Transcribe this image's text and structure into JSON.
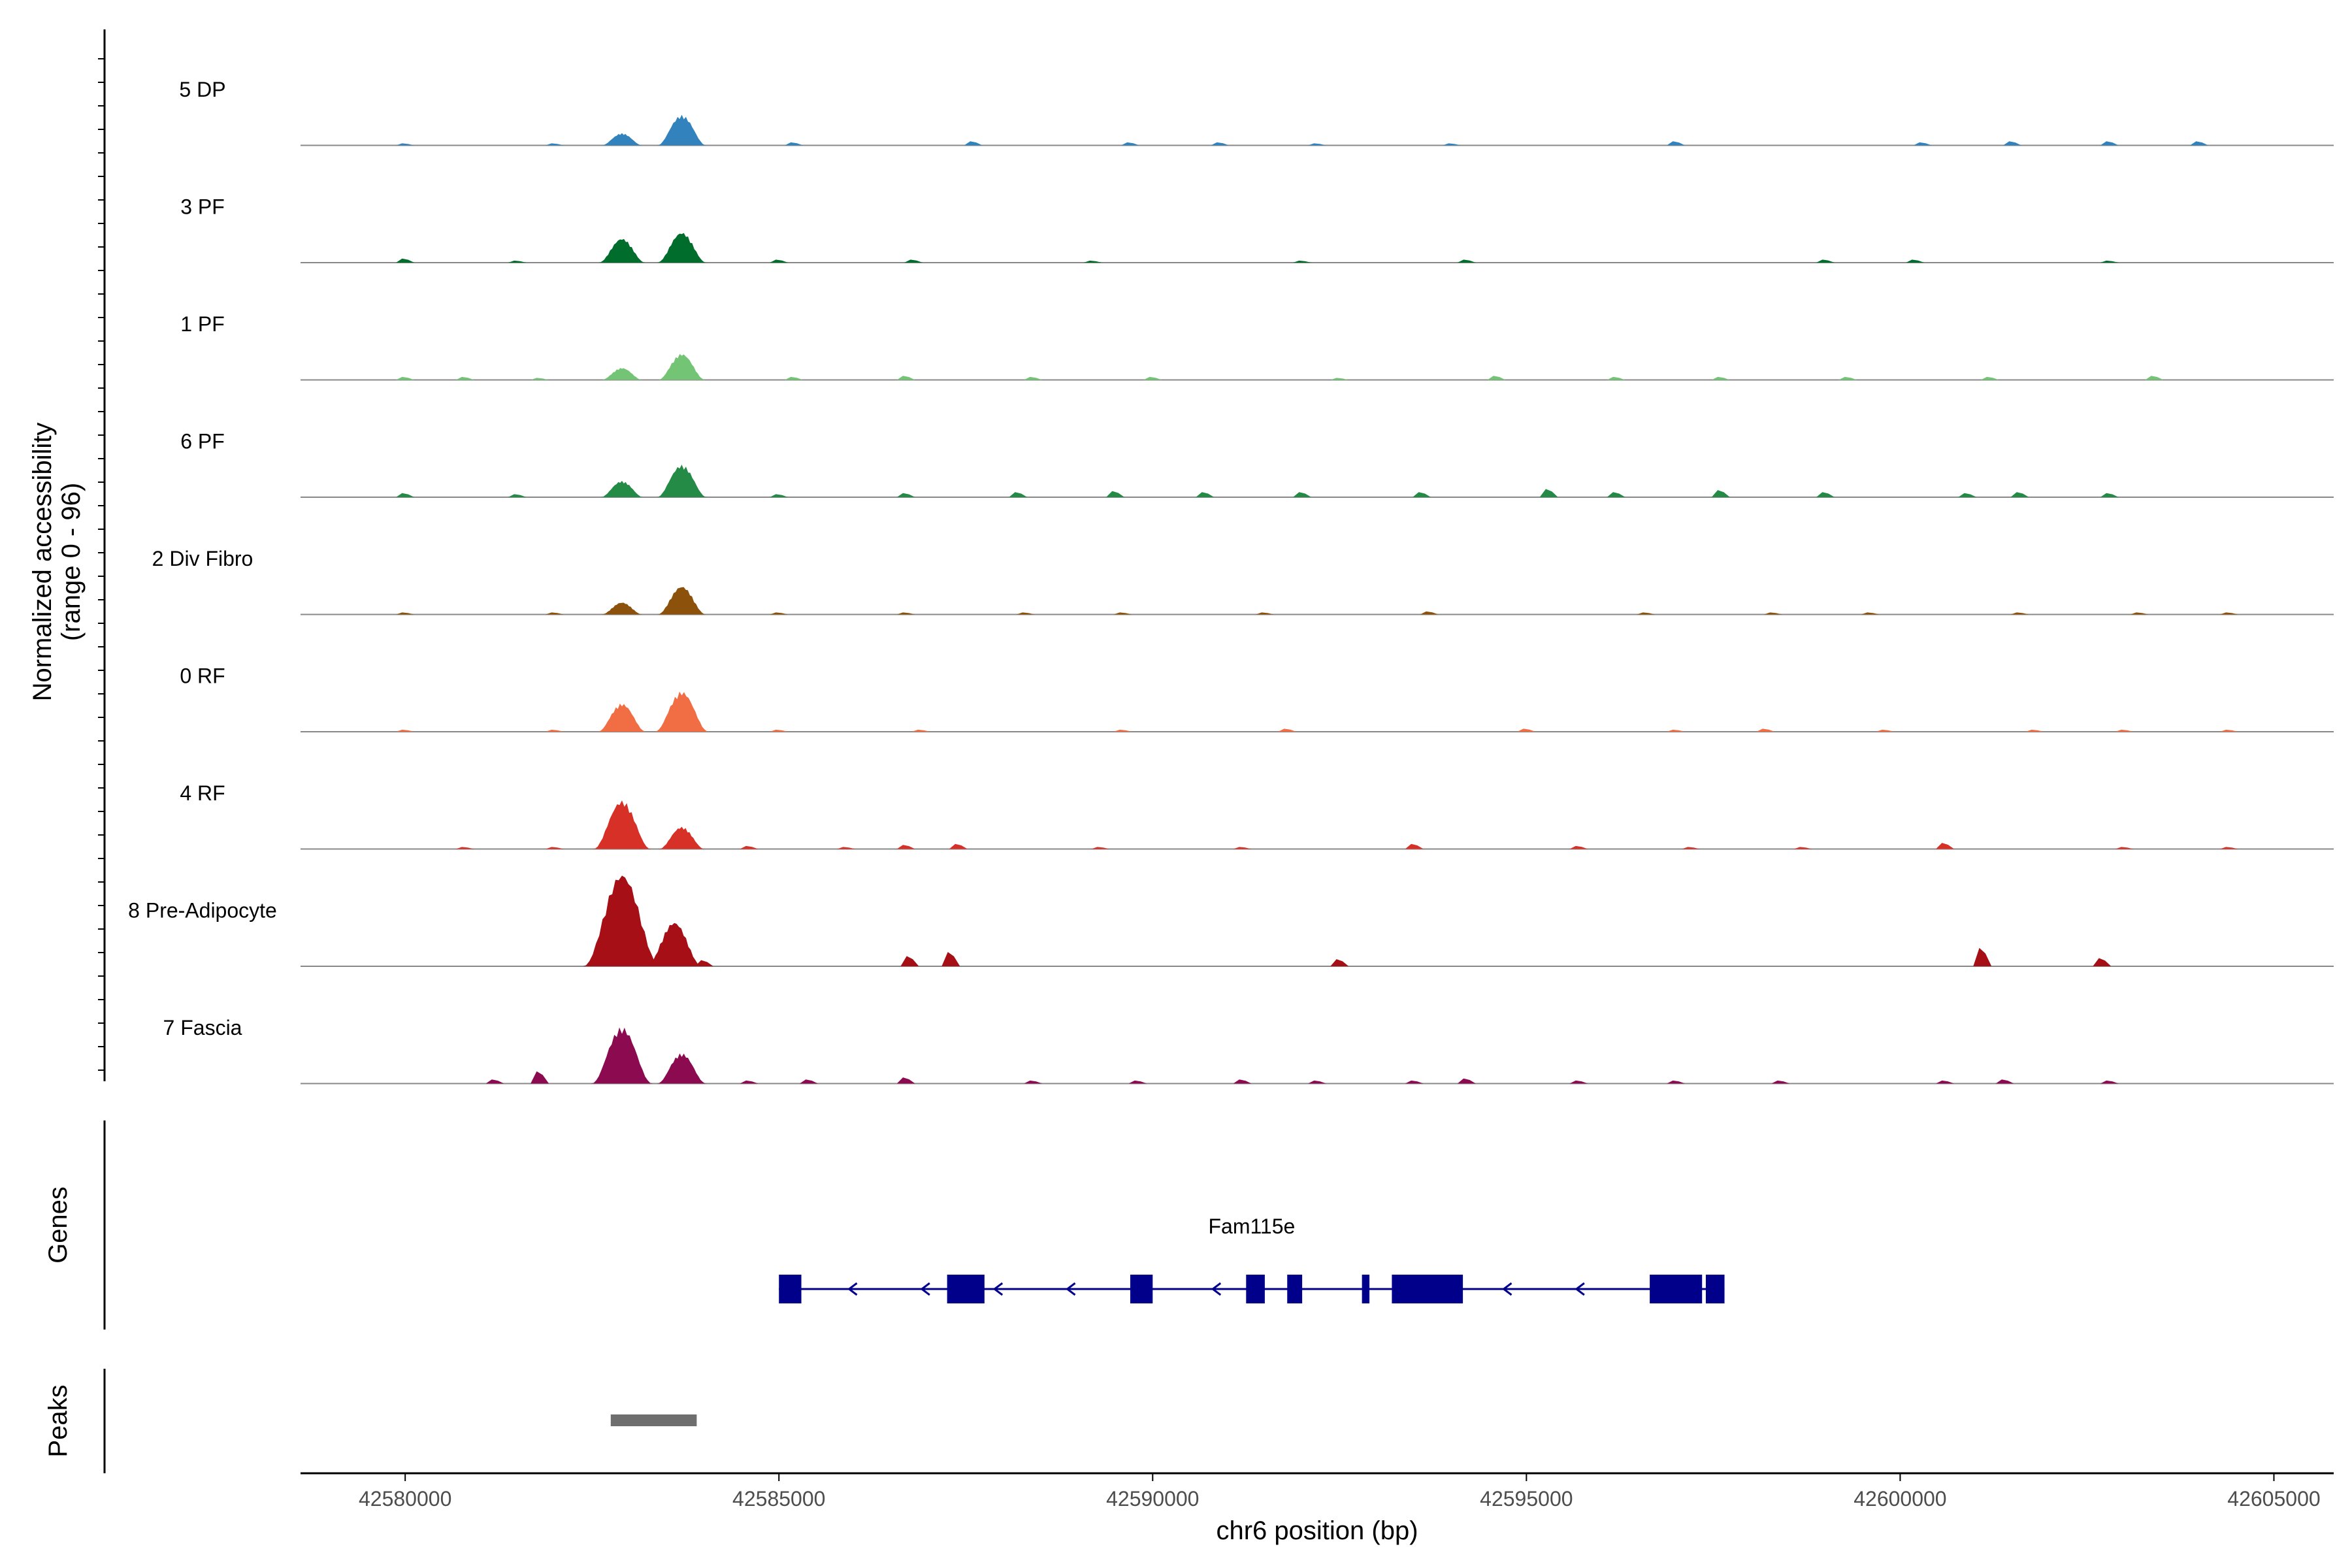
{
  "chart_data": {
    "type": "area",
    "title": "",
    "region": {
      "chromosome": "chr6",
      "start": 42578600,
      "end": 42605800
    },
    "xlabel": "chr6 position (bp)",
    "ylabel": [
      "Normalized accessibility",
      "(range 0 - 96)"
    ],
    "ylim": [
      0,
      96
    ],
    "x_ticks": [
      42580000,
      42585000,
      42590000,
      42595000,
      42600000,
      42605000
    ],
    "x_tick_labels": [
      "42580000",
      "42585000",
      "42590000",
      "42595000",
      "42600000",
      "42605000"
    ],
    "peak_centers_bp": [
      42582900,
      42583700
    ],
    "tracks": [
      {
        "name": "5 DP",
        "color": "#3182bd",
        "peaks": [
          [
            42582900,
            12
          ],
          [
            42583700,
            30
          ]
        ],
        "background": [
          [
            42580000,
            2
          ],
          [
            42582000,
            2
          ],
          [
            42585200,
            3
          ],
          [
            42587600,
            4
          ],
          [
            42589700,
            3
          ],
          [
            42590900,
            3
          ],
          [
            42592200,
            2
          ],
          [
            42594000,
            2
          ],
          [
            42597000,
            4
          ],
          [
            42600300,
            3
          ],
          [
            42601500,
            4
          ],
          [
            42602800,
            4
          ],
          [
            42604000,
            4
          ]
        ]
      },
      {
        "name": "3 PF",
        "color": "#006d2c",
        "peaks": [
          [
            42582900,
            24
          ],
          [
            42583700,
            30
          ]
        ],
        "background": [
          [
            42580000,
            4
          ],
          [
            42581500,
            2
          ],
          [
            42585000,
            3
          ],
          [
            42586800,
            3
          ],
          [
            42589200,
            2
          ],
          [
            42592000,
            2
          ],
          [
            42594200,
            3
          ],
          [
            42599000,
            3
          ],
          [
            42600200,
            3
          ],
          [
            42602800,
            2
          ]
        ]
      },
      {
        "name": "1 PF",
        "color": "#74c476",
        "peaks": [
          [
            42582900,
            12
          ],
          [
            42583700,
            26
          ]
        ],
        "background": [
          [
            42580000,
            3
          ],
          [
            42580800,
            3
          ],
          [
            42581800,
            2
          ],
          [
            42585200,
            3
          ],
          [
            42586700,
            4
          ],
          [
            42588400,
            3
          ],
          [
            42590000,
            3
          ],
          [
            42592500,
            2
          ],
          [
            42594600,
            4
          ],
          [
            42596200,
            3
          ],
          [
            42597600,
            3
          ],
          [
            42599300,
            3
          ],
          [
            42601200,
            3
          ],
          [
            42603400,
            4
          ]
        ]
      },
      {
        "name": "6 PF",
        "color": "#238b45",
        "peaks": [
          [
            42582900,
            16
          ],
          [
            42583700,
            32
          ]
        ],
        "background": [
          [
            42580000,
            4
          ],
          [
            42581500,
            3
          ],
          [
            42585000,
            3
          ],
          [
            42586700,
            4
          ],
          [
            42588200,
            5
          ],
          [
            42589500,
            6
          ],
          [
            42590700,
            5
          ],
          [
            42592000,
            5
          ],
          [
            42593600,
            5
          ],
          [
            42595300,
            8
          ],
          [
            42596200,
            5
          ],
          [
            42597600,
            7
          ],
          [
            42599000,
            5
          ],
          [
            42600900,
            4
          ],
          [
            42601600,
            5
          ],
          [
            42602800,
            4
          ]
        ]
      },
      {
        "name": "2 Div Fibro",
        "color": "#8c510a",
        "peaks": [
          [
            42582900,
            12
          ],
          [
            42583700,
            28
          ]
        ],
        "background": [
          [
            42580000,
            2
          ],
          [
            42582000,
            2
          ],
          [
            42585000,
            2
          ],
          [
            42586700,
            2
          ],
          [
            42588300,
            2
          ],
          [
            42589600,
            2
          ],
          [
            42591500,
            2
          ],
          [
            42593700,
            3
          ],
          [
            42596600,
            2
          ],
          [
            42598300,
            2
          ],
          [
            42599600,
            2
          ],
          [
            42601600,
            2
          ],
          [
            42603200,
            2
          ],
          [
            42604400,
            2
          ]
        ]
      },
      {
        "name": "0 RF",
        "color": "#f16d43",
        "peaks": [
          [
            42582900,
            28
          ],
          [
            42583700,
            40
          ]
        ],
        "background": [
          [
            42580000,
            2
          ],
          [
            42582000,
            2
          ],
          [
            42585000,
            2
          ],
          [
            42586900,
            2
          ],
          [
            42589600,
            2
          ],
          [
            42591800,
            3
          ],
          [
            42595000,
            3
          ],
          [
            42597000,
            2
          ],
          [
            42598200,
            3
          ],
          [
            42599800,
            2
          ],
          [
            42601800,
            2
          ],
          [
            42603000,
            2
          ],
          [
            42604400,
            2
          ]
        ]
      },
      {
        "name": "4 RF",
        "color": "#d73027",
        "peaks": [
          [
            42582900,
            48
          ],
          [
            42583700,
            22
          ]
        ],
        "background": [
          [
            42580800,
            2
          ],
          [
            42582000,
            2
          ],
          [
            42584600,
            3
          ],
          [
            42585900,
            2
          ],
          [
            42586700,
            4
          ],
          [
            42587400,
            5
          ],
          [
            42589300,
            2
          ],
          [
            42591200,
            2
          ],
          [
            42593500,
            5
          ],
          [
            42595700,
            3
          ],
          [
            42597200,
            2
          ],
          [
            42598700,
            2
          ],
          [
            42600600,
            6
          ],
          [
            42603000,
            2
          ],
          [
            42604400,
            2
          ]
        ]
      },
      {
        "name": "8 Pre-Adipocyte",
        "color": "#a50f15",
        "peaks": [
          [
            42582900,
            92
          ],
          [
            42583600,
            44
          ]
        ],
        "background": [
          [
            42584000,
            6
          ],
          [
            42586750,
            10
          ],
          [
            42587300,
            14
          ],
          [
            42592500,
            7
          ],
          [
            42601100,
            18
          ],
          [
            42602700,
            8
          ]
        ]
      },
      {
        "name": "7 Fascia",
        "color": "#8b0a50",
        "peaks": [
          [
            42582900,
            56
          ],
          [
            42583700,
            30
          ]
        ],
        "background": [
          [
            42581200,
            4
          ],
          [
            42581800,
            12
          ],
          [
            42584600,
            3
          ],
          [
            42585400,
            4
          ],
          [
            42586700,
            6
          ],
          [
            42588400,
            3
          ],
          [
            42589800,
            3
          ],
          [
            42591200,
            4
          ],
          [
            42592200,
            3
          ],
          [
            42593500,
            3
          ],
          [
            42594200,
            5
          ],
          [
            42595700,
            3
          ],
          [
            42597000,
            3
          ],
          [
            42598400,
            3
          ],
          [
            42600600,
            3
          ],
          [
            42601400,
            4
          ],
          [
            42602800,
            3
          ]
        ]
      }
    ],
    "genes_label": "Genes",
    "gene": {
      "name": "Fam115e",
      "start": 42585000,
      "end": 42597650,
      "strand": "-",
      "color": "#00008b",
      "exons": [
        [
          42585000,
          42585300
        ],
        [
          42587250,
          42587750
        ],
        [
          42589700,
          42590000
        ],
        [
          42591250,
          42591500
        ],
        [
          42591800,
          42592000
        ],
        [
          42592800,
          42592900
        ],
        [
          42593200,
          42594150
        ],
        [
          42596650,
          42597350
        ],
        [
          42597400,
          42597650
        ]
      ]
    },
    "peaks_label": "Peaks",
    "peaks_track": {
      "color": "#6e6e6e",
      "regions": [
        [
          42582750,
          42583900
        ]
      ]
    }
  }
}
